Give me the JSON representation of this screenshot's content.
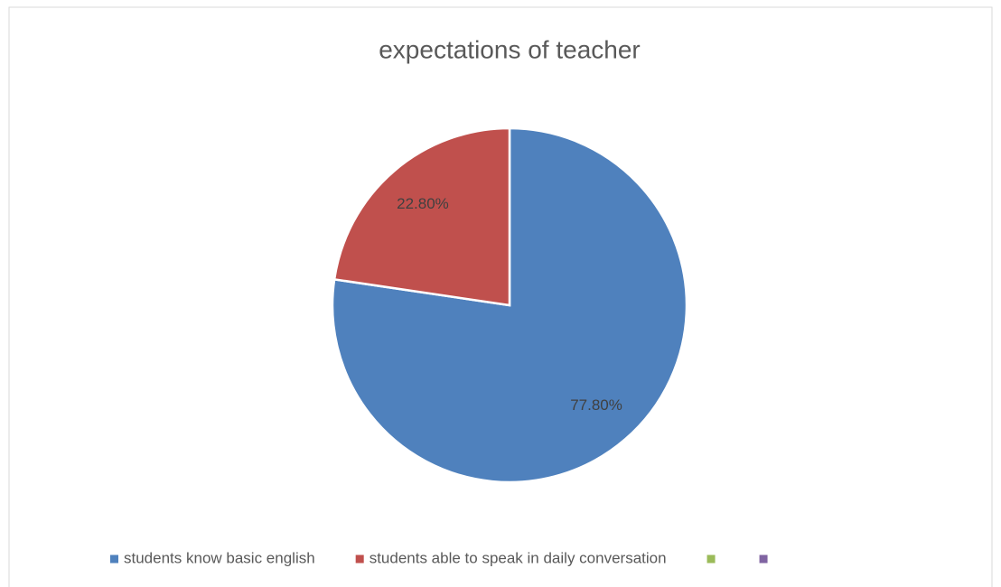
{
  "chart_data": {
    "type": "pie",
    "title": "expectations of teacher",
    "categories": [
      "students know basic english",
      "students able to speak in daily conversation",
      null,
      null
    ],
    "values": [
      77.8,
      22.8,
      0,
      0
    ],
    "value_labels": [
      "77.80%",
      "22.80%",
      null,
      null
    ],
    "colors": [
      "#4f81bd",
      "#c0504d",
      "#9bbb59",
      "#8064a2"
    ],
    "legend": "bottom"
  }
}
